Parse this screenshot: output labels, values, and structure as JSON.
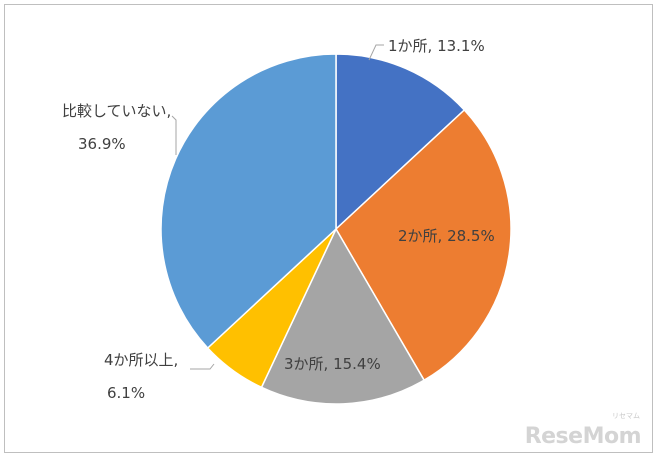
{
  "chart_data": {
    "type": "pie",
    "slices": [
      {
        "category": "1か所",
        "value": 13.1,
        "label_line1": "1か所, 13.1%",
        "label_line2": "",
        "color": "#4472c4"
      },
      {
        "category": "2か所",
        "value": 28.5,
        "label_line1": "2か所, 28.5%",
        "label_line2": "",
        "color": "#ed7d31"
      },
      {
        "category": "3か所",
        "value": 15.4,
        "label_line1": "3か所, 15.4%",
        "label_line2": "",
        "color": "#a5a5a5"
      },
      {
        "category": "4か所以上",
        "value": 6.1,
        "label_line1": "4か所以上,",
        "label_line2": "6.1%",
        "color": "#ffc000"
      },
      {
        "category": "比較していない",
        "value": 36.9,
        "label_line1": "比較していない,",
        "label_line2": "36.9%",
        "color": "#5b9bd5"
      }
    ],
    "start_angle_deg": 0,
    "direction": "clockwise"
  },
  "watermark": {
    "text": "ReseMom",
    "sub": "リセマム"
  }
}
